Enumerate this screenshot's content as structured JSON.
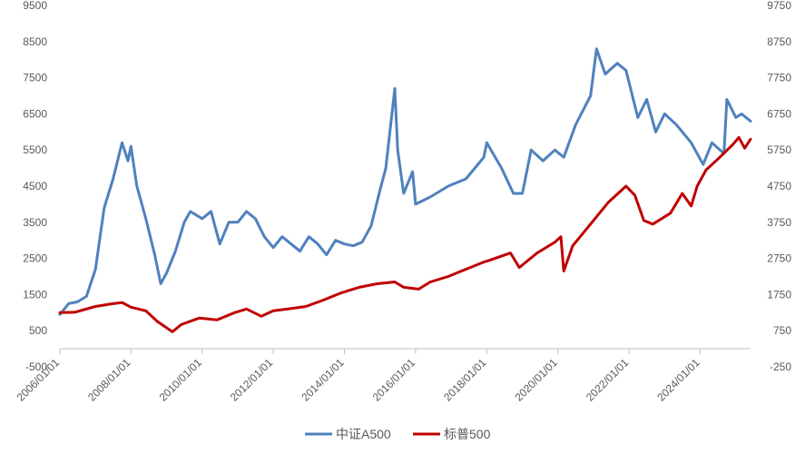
{
  "chart_data": {
    "type": "line",
    "title": "",
    "xlabel": "",
    "ylabel_left": "",
    "ylabel_right": "",
    "grid": false,
    "legend_position": "bottom",
    "x_range": [
      "2006/01/01",
      "2025/06/01"
    ],
    "x_tick_labels": [
      "2006/01/01",
      "2008/01/01",
      "2010/01/01",
      "2012/01/01",
      "2014/01/01",
      "2016/01/01",
      "2018/01/01",
      "2020/01/01",
      "2022/01/01",
      "2024/01/01"
    ],
    "left_axis": {
      "ylim": [
        -500,
        9500
      ],
      "ticks": [
        "-500",
        "500",
        "1500",
        "2500",
        "3500",
        "4500",
        "5500",
        "6500",
        "7500",
        "8500",
        "9500"
      ]
    },
    "right_axis": {
      "ylim": [
        -250,
        9750
      ],
      "ticks": [
        "-250",
        "750",
        "1750",
        "2750",
        "3750",
        "4750",
        "5750",
        "6750",
        "7750",
        "8750",
        "9750"
      ]
    },
    "series": [
      {
        "name": "中证A500",
        "axis": "left",
        "color": "#4F81BD",
        "points": [
          [
            "2006/01/01",
            950
          ],
          [
            "2006/04/01",
            1250
          ],
          [
            "2006/07/01",
            1300
          ],
          [
            "2006/10/01",
            1450
          ],
          [
            "2007/01/01",
            2200
          ],
          [
            "2007/04/01",
            3900
          ],
          [
            "2007/07/01",
            4700
          ],
          [
            "2007/10/01",
            5700
          ],
          [
            "2007/12/01",
            5200
          ],
          [
            "2008/01/01",
            5600
          ],
          [
            "2008/03/01",
            4500
          ],
          [
            "2008/06/01",
            3600
          ],
          [
            "2008/09/01",
            2600
          ],
          [
            "2008/11/01",
            1800
          ],
          [
            "2009/01/01",
            2100
          ],
          [
            "2009/04/01",
            2700
          ],
          [
            "2009/07/01",
            3500
          ],
          [
            "2009/09/01",
            3800
          ],
          [
            "2009/11/01",
            3700
          ],
          [
            "2010/01/01",
            3600
          ],
          [
            "2010/04/01",
            3800
          ],
          [
            "2010/07/01",
            2900
          ],
          [
            "2010/10/01",
            3500
          ],
          [
            "2011/01/01",
            3500
          ],
          [
            "2011/04/01",
            3800
          ],
          [
            "2011/07/01",
            3600
          ],
          [
            "2011/10/01",
            3100
          ],
          [
            "2012/01/01",
            2800
          ],
          [
            "2012/04/01",
            3100
          ],
          [
            "2012/07/01",
            2900
          ],
          [
            "2012/10/01",
            2700
          ],
          [
            "2013/01/01",
            3100
          ],
          [
            "2013/04/01",
            2900
          ],
          [
            "2013/07/01",
            2600
          ],
          [
            "2013/10/01",
            3000
          ],
          [
            "2014/01/01",
            2900
          ],
          [
            "2014/04/01",
            2850
          ],
          [
            "2014/07/01",
            2950
          ],
          [
            "2014/10/01",
            3400
          ],
          [
            "2015/01/01",
            4400
          ],
          [
            "2015/03/01",
            5000
          ],
          [
            "2015/06/01",
            7200
          ],
          [
            "2015/07/01",
            5500
          ],
          [
            "2015/09/01",
            4300
          ],
          [
            "2015/12/01",
            4900
          ],
          [
            "2016/01/01",
            4000
          ],
          [
            "2016/06/01",
            4200
          ],
          [
            "2016/12/01",
            4500
          ],
          [
            "2017/06/01",
            4700
          ],
          [
            "2017/12/01",
            5300
          ],
          [
            "2018/01/01",
            5700
          ],
          [
            "2018/06/01",
            5000
          ],
          [
            "2018/10/01",
            4300
          ],
          [
            "2019/01/01",
            4300
          ],
          [
            "2019/04/01",
            5500
          ],
          [
            "2019/08/01",
            5200
          ],
          [
            "2019/12/01",
            5500
          ],
          [
            "2020/03/01",
            5300
          ],
          [
            "2020/07/01",
            6200
          ],
          [
            "2020/12/01",
            7000
          ],
          [
            "2021/02/01",
            8300
          ],
          [
            "2021/05/01",
            7600
          ],
          [
            "2021/09/01",
            7900
          ],
          [
            "2021/12/01",
            7700
          ],
          [
            "2022/04/01",
            6400
          ],
          [
            "2022/07/01",
            6900
          ],
          [
            "2022/10/01",
            6000
          ],
          [
            "2023/01/01",
            6500
          ],
          [
            "2023/05/01",
            6200
          ],
          [
            "2023/10/01",
            5700
          ],
          [
            "2024/02/01",
            5100
          ],
          [
            "2024/05/01",
            5700
          ],
          [
            "2024/09/01",
            5400
          ],
          [
            "2024/10/01",
            6900
          ],
          [
            "2025/01/01",
            6400
          ],
          [
            "2025/03/01",
            6500
          ],
          [
            "2025/06/01",
            6300
          ]
        ]
      },
      {
        "name": "标普500",
        "axis": "right",
        "color": "#C00000",
        "points": [
          [
            "2006/01/01",
            1250
          ],
          [
            "2006/06/01",
            1260
          ],
          [
            "2007/01/01",
            1420
          ],
          [
            "2007/07/01",
            1500
          ],
          [
            "2007/10/01",
            1530
          ],
          [
            "2008/01/01",
            1400
          ],
          [
            "2008/06/01",
            1300
          ],
          [
            "2008/10/01",
            1000
          ],
          [
            "2009/03/01",
            720
          ],
          [
            "2009/06/01",
            920
          ],
          [
            "2009/12/01",
            1100
          ],
          [
            "2010/06/01",
            1050
          ],
          [
            "2010/12/01",
            1250
          ],
          [
            "2011/04/01",
            1350
          ],
          [
            "2011/09/01",
            1150
          ],
          [
            "2012/01/01",
            1300
          ],
          [
            "2012/06/01",
            1350
          ],
          [
            "2012/12/01",
            1420
          ],
          [
            "2013/06/01",
            1600
          ],
          [
            "2013/12/01",
            1800
          ],
          [
            "2014/06/01",
            1950
          ],
          [
            "2014/12/01",
            2050
          ],
          [
            "2015/06/01",
            2100
          ],
          [
            "2015/09/01",
            1950
          ],
          [
            "2016/02/01",
            1900
          ],
          [
            "2016/06/01",
            2100
          ],
          [
            "2016/12/01",
            2250
          ],
          [
            "2017/06/01",
            2450
          ],
          [
            "2017/12/01",
            2650
          ],
          [
            "2018/02/01",
            2700
          ],
          [
            "2018/09/01",
            2900
          ],
          [
            "2018/12/01",
            2500
          ],
          [
            "2019/06/01",
            2900
          ],
          [
            "2019/12/01",
            3200
          ],
          [
            "2020/02/01",
            3350
          ],
          [
            "2020/03/01",
            2400
          ],
          [
            "2020/06/01",
            3100
          ],
          [
            "2020/12/01",
            3700
          ],
          [
            "2021/06/01",
            4300
          ],
          [
            "2021/12/01",
            4750
          ],
          [
            "2022/03/01",
            4500
          ],
          [
            "2022/06/01",
            3800
          ],
          [
            "2022/09/01",
            3700
          ],
          [
            "2022/12/01",
            3850
          ],
          [
            "2023/03/01",
            4000
          ],
          [
            "2023/07/01",
            4550
          ],
          [
            "2023/10/01",
            4200
          ],
          [
            "2023/12/01",
            4750
          ],
          [
            "2024/03/01",
            5200
          ],
          [
            "2024/07/01",
            5500
          ],
          [
            "2024/12/01",
            5900
          ],
          [
            "2025/02/01",
            6100
          ],
          [
            "2025/04/01",
            5800
          ],
          [
            "2025/06/01",
            6050
          ]
        ]
      }
    ]
  }
}
